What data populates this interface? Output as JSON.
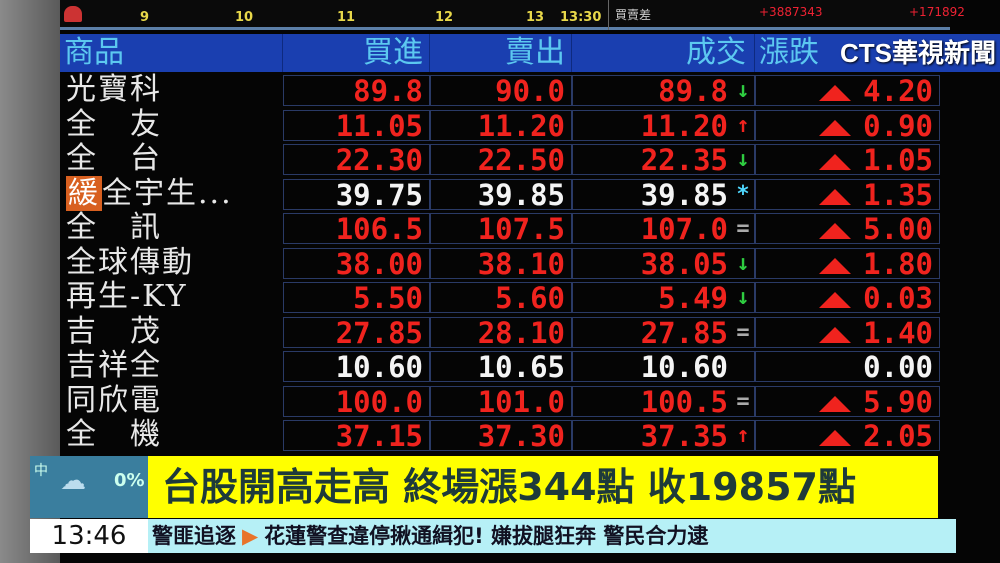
{
  "chart_strip": {
    "ticks": [
      "9",
      "10",
      "11",
      "12",
      "13",
      "13:30"
    ],
    "stat_label": "買賣差",
    "stat_values": [
      "+3887343",
      "+171892"
    ]
  },
  "logo": "CTS華視新聞",
  "header": {
    "product": "商品",
    "bid": "買進",
    "ask": "賣出",
    "trade": "成交",
    "change": "漲跌"
  },
  "rows": [
    {
      "tag": "",
      "name": "光寶科",
      "bid": "89.8",
      "ask": "90.0",
      "trade": "89.8",
      "dir": "↓",
      "change": "4.20",
      "up": true,
      "color": "red"
    },
    {
      "tag": "",
      "name": "全　友",
      "bid": "11.05",
      "ask": "11.20",
      "trade": "11.20",
      "dir": "↑",
      "change": "0.90",
      "up": true,
      "color": "red"
    },
    {
      "tag": "",
      "name": "全　台",
      "bid": "22.30",
      "ask": "22.50",
      "trade": "22.35",
      "dir": "↓",
      "change": "1.05",
      "up": true,
      "color": "red"
    },
    {
      "tag": "緩",
      "name": "全宇生...",
      "bid": "39.75",
      "ask": "39.85",
      "trade": "39.85",
      "dir": "*",
      "change": "1.35",
      "up": true,
      "color": "white"
    },
    {
      "tag": "",
      "name": "全　訊",
      "bid": "106.5",
      "ask": "107.5",
      "trade": "107.0",
      "dir": "=",
      "change": "5.00",
      "up": true,
      "color": "red"
    },
    {
      "tag": "",
      "name": "全球傳動",
      "bid": "38.00",
      "ask": "38.10",
      "trade": "38.05",
      "dir": "↓",
      "change": "1.80",
      "up": true,
      "color": "red"
    },
    {
      "tag": "",
      "name": "再生-KY",
      "bid": "5.50",
      "ask": "5.60",
      "trade": "5.49",
      "dir": "↓",
      "change": "0.03",
      "up": true,
      "color": "red"
    },
    {
      "tag": "",
      "name": "吉　茂",
      "bid": "27.85",
      "ask": "28.10",
      "trade": "27.85",
      "dir": "=",
      "change": "1.40",
      "up": true,
      "color": "red"
    },
    {
      "tag": "",
      "name": "吉祥全",
      "bid": "10.60",
      "ask": "10.65",
      "trade": "10.60",
      "dir": "",
      "change": "0.00",
      "up": false,
      "color": "white"
    },
    {
      "tag": "",
      "name": "同欣電",
      "bid": "100.0",
      "ask": "101.0",
      "trade": "100.5",
      "dir": "=",
      "change": "5.90",
      "up": true,
      "color": "red"
    },
    {
      "tag": "",
      "name": "全　機",
      "bid": "37.15",
      "ask": "37.30",
      "trade": "37.35",
      "dir": "↑",
      "change": "2.05",
      "up": true,
      "color": "red"
    }
  ],
  "weather": {
    "region": "中",
    "rain": "0%"
  },
  "headline": "台股開高走高 終場漲344點 收19857點",
  "ticker": {
    "time": "13:46",
    "category": "警匪追逐",
    "text": "花蓮警查違停揪通緝犯! 嫌拔腿狂奔 警民合力逮"
  },
  "colors": {
    "header_bg": "#1a3fb0",
    "up": "#f0231e",
    "down_arrow": "#2ecc40",
    "star": "#4fd8ff",
    "headline_bg": "#ffff00",
    "ticker_bg": "#b6f0f6"
  }
}
